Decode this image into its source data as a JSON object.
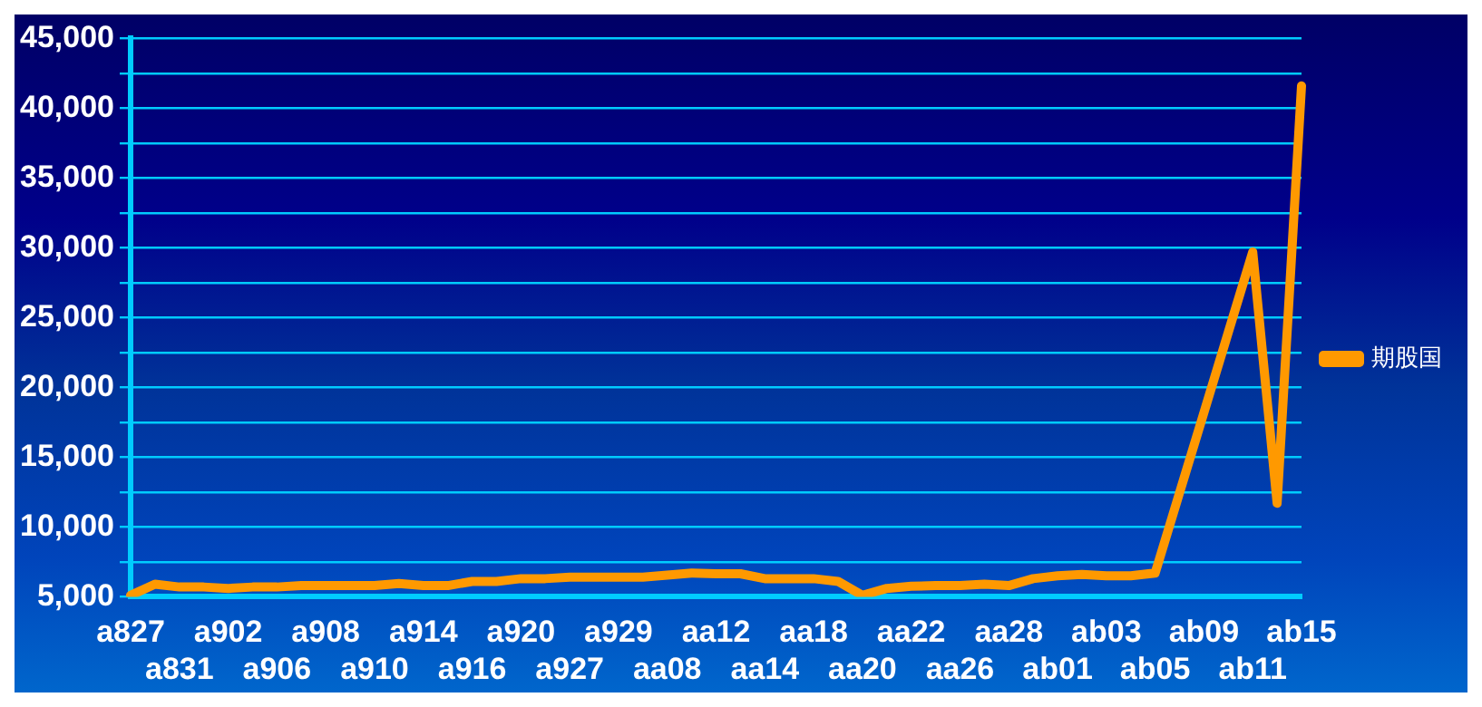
{
  "chart_data": {
    "type": "line",
    "categories": [
      "a827",
      null,
      "a831",
      null,
      "a902",
      null,
      "a906",
      null,
      "a908",
      null,
      "a910",
      null,
      "a914",
      null,
      "a916",
      null,
      "a920",
      null,
      "a927",
      null,
      "a929",
      null,
      "aa08",
      null,
      "aa12",
      null,
      "aa14",
      null,
      "aa18",
      null,
      "aa20",
      null,
      "aa22",
      null,
      "aa26",
      null,
      "aa28",
      null,
      "ab01",
      null,
      "ab03",
      null,
      "ab05",
      null,
      "ab09",
      null,
      "ab11",
      null,
      "ab15"
    ],
    "series": [
      {
        "name": "期股国",
        "color": "#ff9900",
        "values": [
          5100,
          5900,
          5700,
          5700,
          5600,
          5700,
          5700,
          5800,
          5800,
          5800,
          5800,
          5950,
          5800,
          5800,
          6100,
          6100,
          6300,
          6300,
          6400,
          6400,
          6400,
          6400,
          6550,
          6700,
          6650,
          6650,
          6300,
          6300,
          6300,
          6100,
          5100,
          5600,
          5750,
          5800,
          5800,
          5900,
          5800,
          6300,
          6500,
          6600,
          6500,
          6500,
          6700,
          12450,
          18200,
          23950,
          29700,
          11700,
          41600
        ]
      }
    ],
    "ylim": [
      5000,
      45000
    ],
    "yticks": [
      {
        "value": 5000,
        "label": "5,000"
      },
      {
        "value": 7500,
        "label": null
      },
      {
        "value": 10000,
        "label": "10,000"
      },
      {
        "value": 12500,
        "label": null
      },
      {
        "value": 15000,
        "label": "15,000"
      },
      {
        "value": 17500,
        "label": null
      },
      {
        "value": 20000,
        "label": "20,000"
      },
      {
        "value": 22500,
        "label": null
      },
      {
        "value": 25000,
        "label": "25,000"
      },
      {
        "value": 27500,
        "label": null
      },
      {
        "value": 30000,
        "label": "30,000"
      },
      {
        "value": 32500,
        "label": null
      },
      {
        "value": 35000,
        "label": "35,000"
      },
      {
        "value": 37500,
        "label": null
      },
      {
        "value": 40000,
        "label": "40,000"
      },
      {
        "value": 42500,
        "label": null
      },
      {
        "value": 45000,
        "label": "45,000"
      }
    ],
    "grid": "y",
    "legend": "right",
    "marker": "none",
    "line_style": "solid"
  }
}
